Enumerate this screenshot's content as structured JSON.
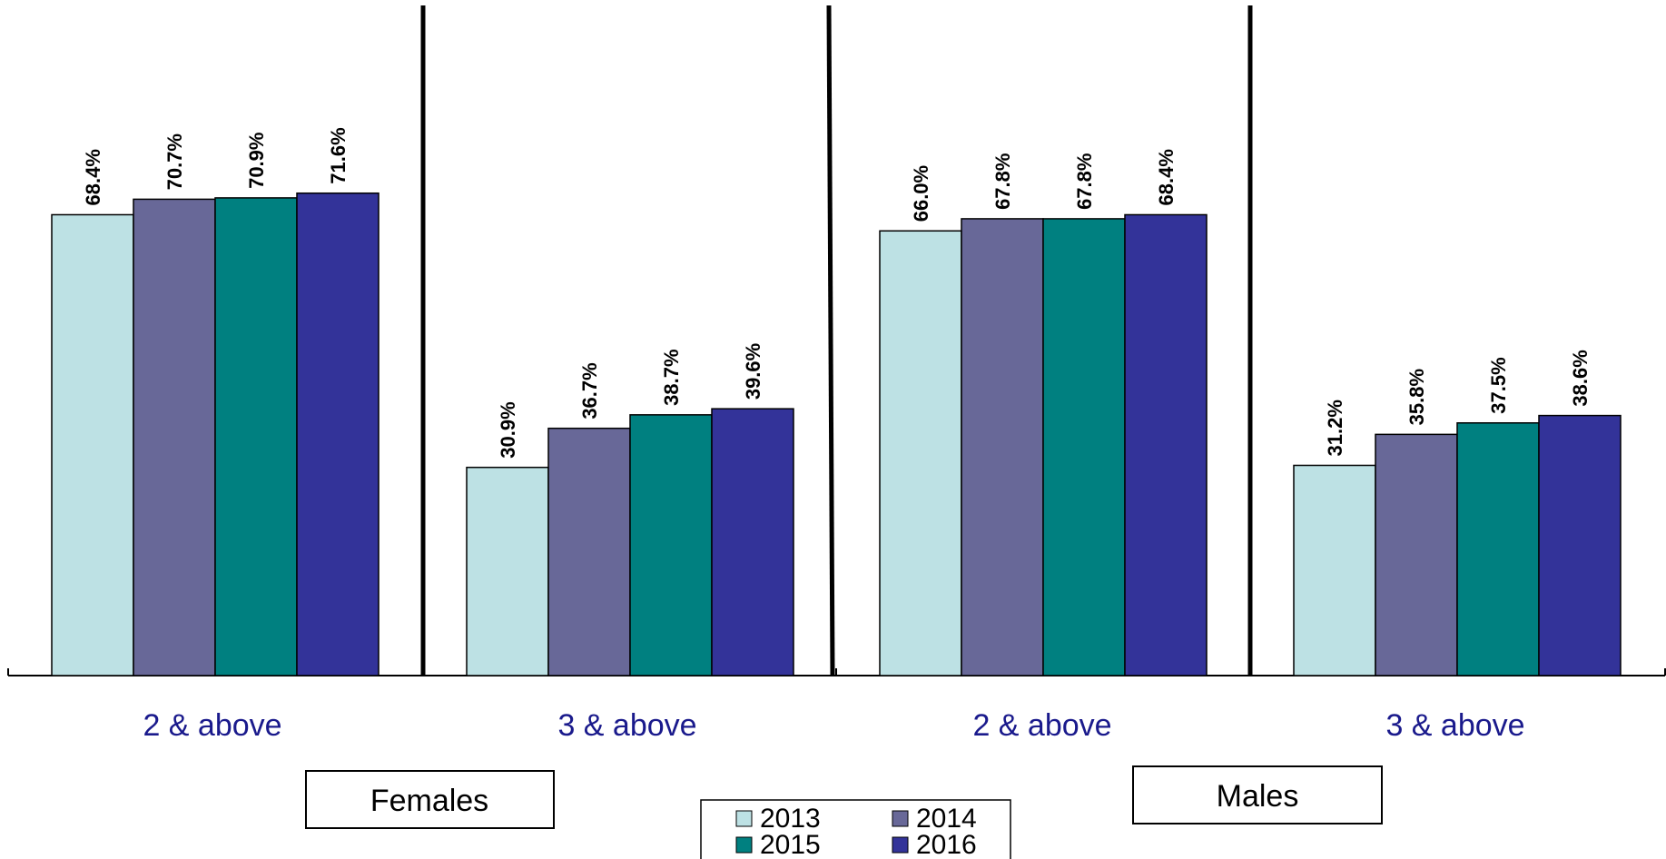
{
  "chart_data": {
    "type": "bar",
    "ylim": [
      0,
      100
    ],
    "grid": false,
    "legend_position": "bottom-center",
    "categories": [
      "2 & above",
      "3 & above",
      "2 & above",
      "3 & above"
    ],
    "groups": [
      "Females",
      "Males"
    ],
    "series": [
      {
        "name": "2013",
        "color": "#bde1e4",
        "values": [
          68.4,
          30.9,
          66.0,
          31.2
        ],
        "labels": [
          "68.4%",
          "30.9%",
          "66.0%",
          "31.2%"
        ]
      },
      {
        "name": "2014",
        "color": "#686898",
        "values": [
          70.7,
          36.7,
          67.8,
          35.8
        ],
        "labels": [
          "70.7%",
          "36.7%",
          "67.8%",
          "35.8%"
        ]
      },
      {
        "name": "2015",
        "color": "#008080",
        "values": [
          70.9,
          38.7,
          67.8,
          37.5
        ],
        "labels": [
          "70.9%",
          "38.7%",
          "67.8%",
          "37.5%"
        ]
      },
      {
        "name": "2016",
        "color": "#333399",
        "values": [
          71.6,
          39.6,
          68.4,
          38.6
        ],
        "labels": [
          "71.6%",
          "39.6%",
          "68.4%",
          "38.6%"
        ]
      }
    ]
  }
}
